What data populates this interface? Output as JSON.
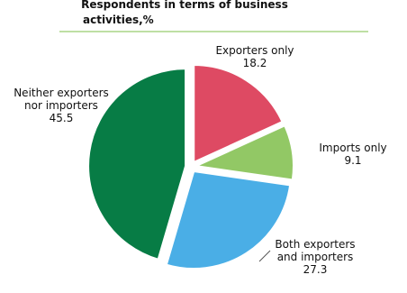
{
  "chart_data": {
    "type": "pie",
    "title_lines": [
      "Respondents in terms of business",
      "activities,%"
    ],
    "slices": [
      {
        "name_lines": [
          "Exporters only"
        ],
        "value": 18.2,
        "value_text": "18.2",
        "color": "#de4a63"
      },
      {
        "name_lines": [
          "Imports only"
        ],
        "value": 9.1,
        "value_text": "9.1",
        "color": "#92c865"
      },
      {
        "name_lines": [
          "Both exporters",
          "and importers"
        ],
        "value": 27.3,
        "value_text": "27.3",
        "color": "#4aaee6"
      },
      {
        "name_lines": [
          "Neither exporters",
          "nor importers"
        ],
        "value": 45.5,
        "value_text": "45.5",
        "color": "#077c45"
      }
    ],
    "rule_color": "#7dbf4a",
    "start_angle": "12 o'clock",
    "direction": "clockwise",
    "exploded": true
  }
}
